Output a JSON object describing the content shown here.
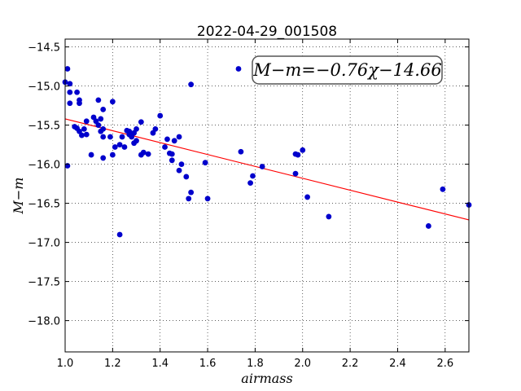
{
  "chart_data": {
    "type": "scatter",
    "title": "2022-04-29_001508",
    "xlabel": "airmass",
    "ylabel": "M−m",
    "xlim": [
      1.0,
      2.7
    ],
    "ylim": [
      -14.4,
      -18.4
    ],
    "y_inverted": true,
    "grid": true,
    "x_ticks": [
      "1.0",
      "1.2",
      "1.4",
      "1.6",
      "1.8",
      "2.0",
      "2.2",
      "2.4",
      "2.6"
    ],
    "y_ticks": [
      "−14.5",
      "−15.0",
      "−15.5",
      "−16.0",
      "−16.5",
      "−17.0",
      "−17.5",
      "−18.0"
    ],
    "annotation": "M−m=−0.76χ−14.66",
    "fit": {
      "slope": -0.76,
      "intercept": -14.66,
      "color": "#ff0000"
    },
    "point_color": "#0000cc",
    "points": [
      [
        1.0,
        -14.95
      ],
      [
        1.01,
        -14.78
      ],
      [
        1.01,
        -16.02
      ],
      [
        1.02,
        -14.97
      ],
      [
        1.02,
        -15.08
      ],
      [
        1.02,
        -15.22
      ],
      [
        1.04,
        -15.52
      ],
      [
        1.05,
        -15.08
      ],
      [
        1.05,
        -15.54
      ],
      [
        1.06,
        -15.18
      ],
      [
        1.06,
        -15.22
      ],
      [
        1.06,
        -15.58
      ],
      [
        1.07,
        -15.63
      ],
      [
        1.08,
        -15.55
      ],
      [
        1.09,
        -15.45
      ],
      [
        1.09,
        -15.62
      ],
      [
        1.11,
        -15.88
      ],
      [
        1.12,
        -15.4
      ],
      [
        1.13,
        -15.45
      ],
      [
        1.14,
        -15.18
      ],
      [
        1.14,
        -15.5
      ],
      [
        1.15,
        -15.58
      ],
      [
        1.15,
        -15.42
      ],
      [
        1.16,
        -15.3
      ],
      [
        1.16,
        -15.55
      ],
      [
        1.16,
        -15.65
      ],
      [
        1.16,
        -15.92
      ],
      [
        1.19,
        -15.65
      ],
      [
        1.2,
        -15.2
      ],
      [
        1.2,
        -15.88
      ],
      [
        1.21,
        -15.78
      ],
      [
        1.23,
        -16.9
      ],
      [
        1.23,
        -15.75
      ],
      [
        1.24,
        -15.65
      ],
      [
        1.25,
        -15.78
      ],
      [
        1.26,
        -15.57
      ],
      [
        1.27,
        -15.58
      ],
      [
        1.27,
        -15.62
      ],
      [
        1.28,
        -15.65
      ],
      [
        1.29,
        -15.6
      ],
      [
        1.29,
        -15.73
      ],
      [
        1.3,
        -15.55
      ],
      [
        1.3,
        -15.7
      ],
      [
        1.32,
        -15.46
      ],
      [
        1.32,
        -15.88
      ],
      [
        1.33,
        -15.85
      ],
      [
        1.35,
        -15.87
      ],
      [
        1.37,
        -15.6
      ],
      [
        1.38,
        -15.55
      ],
      [
        1.4,
        -15.38
      ],
      [
        1.42,
        -15.78
      ],
      [
        1.43,
        -15.68
      ],
      [
        1.44,
        -15.86
      ],
      [
        1.45,
        -15.87
      ],
      [
        1.45,
        -15.95
      ],
      [
        1.46,
        -15.7
      ],
      [
        1.48,
        -15.65
      ],
      [
        1.48,
        -16.08
      ],
      [
        1.49,
        -16.0
      ],
      [
        1.51,
        -16.16
      ],
      [
        1.52,
        -16.44
      ],
      [
        1.53,
        -14.98
      ],
      [
        1.53,
        -16.36
      ],
      [
        1.59,
        -15.98
      ],
      [
        1.6,
        -16.44
      ],
      [
        1.73,
        -14.78
      ],
      [
        1.74,
        -15.84
      ],
      [
        1.78,
        -16.24
      ],
      [
        1.79,
        -16.15
      ],
      [
        1.83,
        -16.03
      ],
      [
        1.97,
        -15.87
      ],
      [
        1.97,
        -16.12
      ],
      [
        1.98,
        -15.88
      ],
      [
        2.0,
        -15.82
      ],
      [
        2.02,
        -16.42
      ],
      [
        2.11,
        -16.67
      ],
      [
        2.53,
        -16.79
      ],
      [
        2.59,
        -16.32
      ],
      [
        2.7,
        -16.52
      ]
    ]
  }
}
